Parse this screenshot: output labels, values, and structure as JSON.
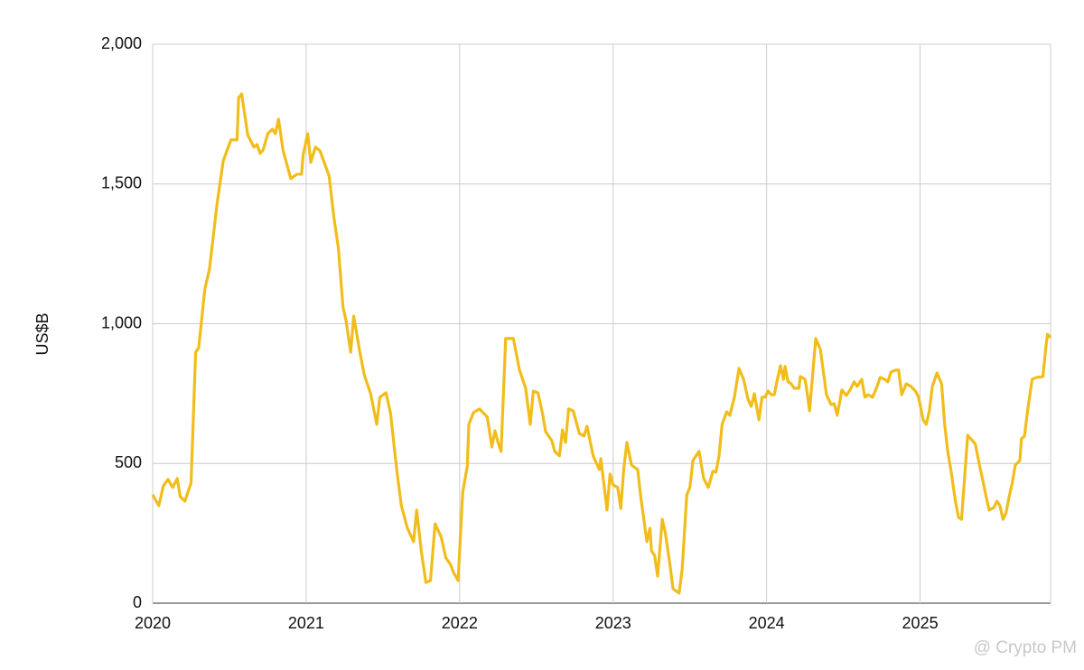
{
  "chart_data": {
    "type": "line",
    "y_label": "US$B",
    "watermark": "@ Crypto PM",
    "color": "#f1bd1b",
    "grid": true,
    "xlim": [
      2020,
      2025.85
    ],
    "xticks": [
      2020,
      2021,
      2022,
      2023,
      2024,
      2025
    ],
    "ylim": [
      0,
      2000
    ],
    "yticks": [
      0,
      500,
      {
        "value": 1000,
        "label": "1,000"
      },
      {
        "value": 1500,
        "label": "1,500"
      },
      {
        "value": 2000,
        "label": "2,000"
      }
    ],
    "x": [
      2020.0,
      2020.04,
      2020.07,
      2020.1,
      2020.13,
      2020.16,
      2020.18,
      2020.21,
      2020.25,
      2020.28,
      2020.3,
      2020.34,
      2020.37,
      2020.42,
      2020.46,
      2020.51,
      2020.55,
      2020.56,
      2020.58,
      2020.62,
      2020.66,
      2020.68,
      2020.7,
      2020.72,
      2020.75,
      2020.78,
      2020.8,
      2020.82,
      2020.85,
      2020.9,
      2020.94,
      2020.97,
      2020.98,
      2021.01,
      2021.03,
      2021.06,
      2021.09,
      2021.15,
      2021.18,
      2021.21,
      2021.24,
      2021.26,
      2021.29,
      2021.31,
      2021.33,
      2021.35,
      2021.38,
      2021.42,
      2021.46,
      2021.48,
      2021.52,
      2021.55,
      2021.59,
      2021.62,
      2021.66,
      2021.7,
      2021.72,
      2021.75,
      2021.78,
      2021.81,
      2021.84,
      2021.88,
      2021.91,
      2021.94,
      2021.96,
      2021.99,
      2022.02,
      2022.05,
      2022.06,
      2022.09,
      2022.13,
      2022.18,
      2022.21,
      2022.23,
      2022.25,
      2022.27,
      2022.3,
      2022.35,
      2022.39,
      2022.43,
      2022.46,
      2022.48,
      2022.51,
      2022.54,
      2022.56,
      2022.6,
      2022.62,
      2022.65,
      2022.67,
      2022.69,
      2022.71,
      2022.74,
      2022.78,
      2022.81,
      2022.83,
      2022.87,
      2022.91,
      2022.92,
      2022.96,
      2022.98,
      2023.0,
      2023.03,
      2023.05,
      2023.07,
      2023.09,
      2023.12,
      2023.16,
      2023.18,
      2023.2,
      2023.22,
      2023.24,
      2023.25,
      2023.27,
      2023.29,
      2023.32,
      2023.34,
      2023.37,
      2023.39,
      2023.43,
      2023.45,
      2023.48,
      2023.5,
      2023.52,
      2023.56,
      2023.59,
      2023.62,
      2023.65,
      2023.67,
      2023.69,
      2023.71,
      2023.74,
      2023.76,
      2023.79,
      2023.82,
      2023.85,
      2023.88,
      2023.9,
      2023.92,
      2023.95,
      2023.97,
      2023.99,
      2024.01,
      2024.03,
      2024.05,
      2024.07,
      2024.09,
      2024.11,
      2024.12,
      2024.14,
      2024.16,
      2024.18,
      2024.21,
      2024.22,
      2024.25,
      2024.26,
      2024.28,
      2024.32,
      2024.35,
      2024.37,
      2024.39,
      2024.42,
      2024.44,
      2024.46,
      2024.49,
      2024.52,
      2024.55,
      2024.57,
      2024.59,
      2024.62,
      2024.64,
      2024.66,
      2024.69,
      2024.72,
      2024.74,
      2024.77,
      2024.79,
      2024.81,
      2024.84,
      2024.86,
      2024.88,
      2024.91,
      2024.94,
      2024.97,
      2024.99,
      2025.02,
      2025.04,
      2025.06,
      2025.08,
      2025.11,
      2025.14,
      2025.16,
      2025.18,
      2025.2,
      2025.23,
      2025.25,
      2025.27,
      2025.31,
      2025.34,
      2025.36,
      2025.39,
      2025.41,
      2025.43,
      2025.45,
      2025.48,
      2025.5,
      2025.52,
      2025.54,
      2025.56,
      2025.58,
      2025.6,
      2025.62,
      2025.65,
      2025.66,
      2025.68,
      2025.7,
      2025.73,
      2025.76,
      2025.8,
      2025.82,
      2025.83,
      2025.85
    ],
    "values": [
      388,
      349,
      420,
      443,
      414,
      446,
      381,
      365,
      430,
      898,
      914,
      1124,
      1195,
      1431,
      1583,
      1658,
      1658,
      1809,
      1822,
      1674,
      1632,
      1641,
      1609,
      1622,
      1680,
      1696,
      1680,
      1732,
      1619,
      1519,
      1535,
      1535,
      1603,
      1680,
      1577,
      1632,
      1619,
      1528,
      1383,
      1270,
      1060,
      1011,
      898,
      1027,
      963,
      898,
      814,
      750,
      640,
      737,
      753,
      679,
      478,
      349,
      268,
      220,
      333,
      187,
      74,
      81,
      284,
      236,
      162,
      139,
      110,
      81,
      397,
      491,
      640,
      682,
      695,
      666,
      559,
      617,
      575,
      543,
      947,
      947,
      834,
      769,
      640,
      759,
      753,
      679,
      614,
      582,
      543,
      527,
      620,
      575,
      695,
      688,
      607,
      598,
      633,
      527,
      478,
      517,
      333,
      462,
      423,
      414,
      339,
      485,
      575,
      494,
      478,
      381,
      300,
      220,
      268,
      187,
      171,
      97,
      300,
      252,
      139,
      52,
      36,
      123,
      388,
      414,
      511,
      543,
      446,
      414,
      472,
      469,
      527,
      640,
      685,
      672,
      737,
      840,
      801,
      727,
      704,
      750,
      656,
      737,
      737,
      759,
      746,
      746,
      801,
      850,
      801,
      847,
      792,
      785,
      769,
      769,
      811,
      801,
      769,
      688,
      947,
      908,
      827,
      746,
      711,
      714,
      672,
      763,
      743,
      769,
      792,
      776,
      801,
      737,
      746,
      737,
      776,
      808,
      801,
      792,
      827,
      834,
      834,
      746,
      785,
      776,
      759,
      737,
      656,
      640,
      688,
      776,
      824,
      785,
      640,
      543,
      478,
      365,
      307,
      300,
      601,
      582,
      569,
      485,
      436,
      381,
      333,
      342,
      365,
      349,
      300,
      323,
      381,
      430,
      494,
      511,
      588,
      598,
      688,
      801,
      808,
      811,
      920,
      962,
      950
    ]
  }
}
